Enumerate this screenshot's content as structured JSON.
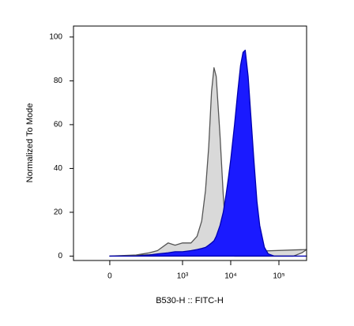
{
  "chart_data": {
    "type": "area",
    "x_label": "B530-H :: FITC-H",
    "y_label": "Normalized To Mode",
    "xscale": "asinh",
    "xscale_cofactor": 62,
    "xlim": [
      -170,
      375000
    ],
    "xticks": [
      0,
      {
        "value": 1000,
        "label": "10³"
      },
      {
        "value": 10000,
        "label": "10⁴"
      },
      {
        "value": 100000,
        "label": "10⁵"
      }
    ],
    "ylim": [
      -2,
      105
    ],
    "yticks": [
      0,
      20,
      40,
      60,
      80,
      100
    ],
    "x": [
      0,
      100,
      200,
      300,
      500,
      700,
      1000,
      1500,
      2000,
      2500,
      3000,
      3500,
      4000,
      4500,
      5000,
      6000,
      7000,
      8000,
      9000,
      10000,
      12000,
      14000,
      16000,
      18000,
      20000,
      23000,
      26000,
      30000,
      35000,
      40000,
      50000,
      60000,
      70000,
      80000,
      100000,
      150000,
      200000,
      300000,
      375000
    ],
    "series": [
      {
        "color": "#d9d9d9",
        "edge": "#555555",
        "values": [
          0,
          0.5,
          1.5,
          2.5,
          6,
          5,
          6,
          6,
          9,
          16,
          30,
          50,
          75,
          86,
          82,
          55,
          28,
          10,
          3,
          0.5,
          0,
          0,
          0,
          0,
          0,
          0,
          0,
          0,
          0,
          0,
          0,
          0,
          0,
          0,
          0,
          0,
          0,
          1.5,
          3
        ]
      },
      {
        "color": "#1a1aff",
        "edge": "#0000b0",
        "values": [
          0,
          0,
          0.5,
          1,
          1.5,
          2,
          2,
          2.5,
          3,
          3.5,
          4,
          5,
          6,
          7,
          9,
          14,
          20,
          28,
          36,
          44,
          60,
          75,
          87,
          93,
          94,
          82,
          65,
          45,
          25,
          14,
          4,
          1,
          0.5,
          0,
          0,
          0,
          0,
          0,
          0
        ]
      }
    ]
  }
}
